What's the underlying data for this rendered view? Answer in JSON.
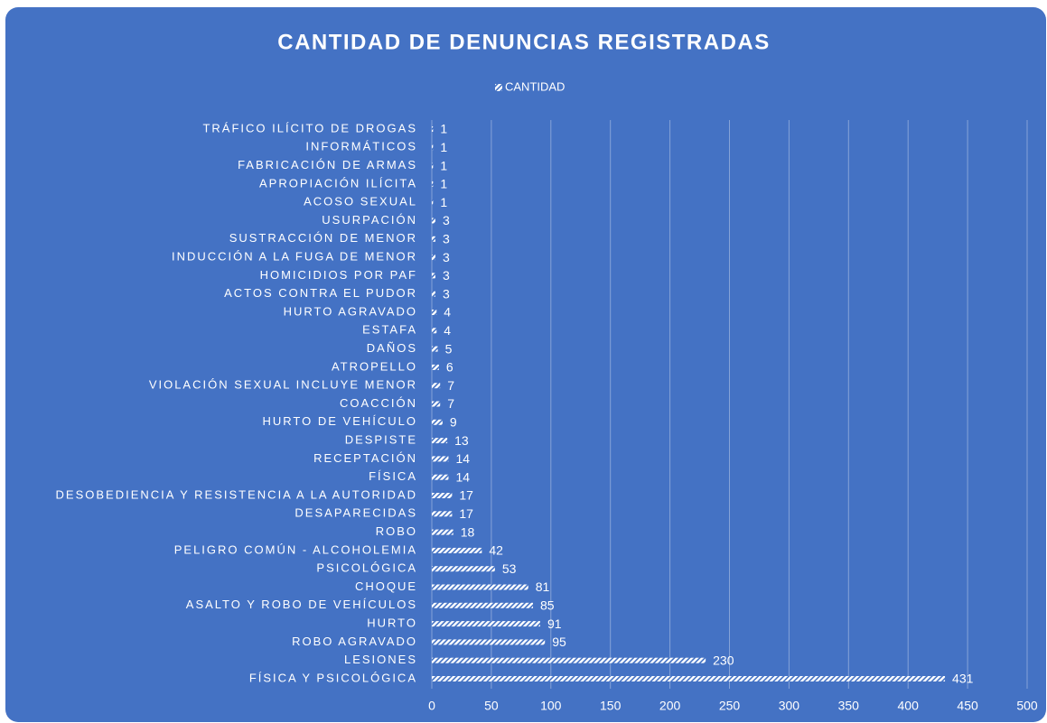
{
  "chart_data": {
    "type": "bar",
    "orientation": "horizontal",
    "title": "CANTIDAD DE DENUNCIAS REGISTRADAS",
    "categories": [
      "TRÁFICO ILÍCITO DE DROGAS",
      "INFORMÁTICOS",
      "FABRICACIÓN DE ARMAS",
      "APROPIACIÓN ILÍCITA",
      "ACOSO SEXUAL",
      "USURPACIÓN",
      "SUSTRACCIÓN DE MENOR",
      "INDUCCIÓN A LA FUGA DE MENOR",
      "HOMICIDIOS POR PAF",
      "ACTOS CONTRA EL PUDOR",
      "HURTO AGRAVADO",
      "ESTAFA",
      "DAÑOS",
      "ATROPELLO",
      "VIOLACIÓN SEXUAL INCLUYE MENOR",
      "COACCIÓN",
      "HURTO DE VEHÍCULO",
      "DESPISTE",
      "RECEPTACIÓN",
      "FÍSICA",
      "DESOBEDIENCIA Y RESISTENCIA A LA AUTORIDAD",
      "DESAPARECIDAS",
      "ROBO",
      "PELIGRO COMÚN - ALCOHOLEMIA",
      "PSICOLÓGICA",
      "CHOQUE",
      "ASALTO Y ROBO DE VEHÍCULOS",
      "HURTO",
      "ROBO AGRAVADO",
      "LESIONES",
      "FÍSICA Y PSICOLÓGICA"
    ],
    "series": [
      {
        "name": "CANTIDAD",
        "color": "#ffffff",
        "values": [
          1,
          1,
          1,
          1,
          1,
          3,
          3,
          3,
          3,
          3,
          4,
          4,
          5,
          6,
          7,
          7,
          9,
          13,
          14,
          14,
          17,
          17,
          18,
          42,
          53,
          81,
          85,
          91,
          95,
          230,
          431
        ]
      }
    ],
    "xlim": [
      0,
      500
    ],
    "xticks": [
      0,
      50,
      100,
      150,
      200,
      250,
      300,
      350,
      400,
      450,
      500
    ],
    "grid": true,
    "legend": "top"
  }
}
